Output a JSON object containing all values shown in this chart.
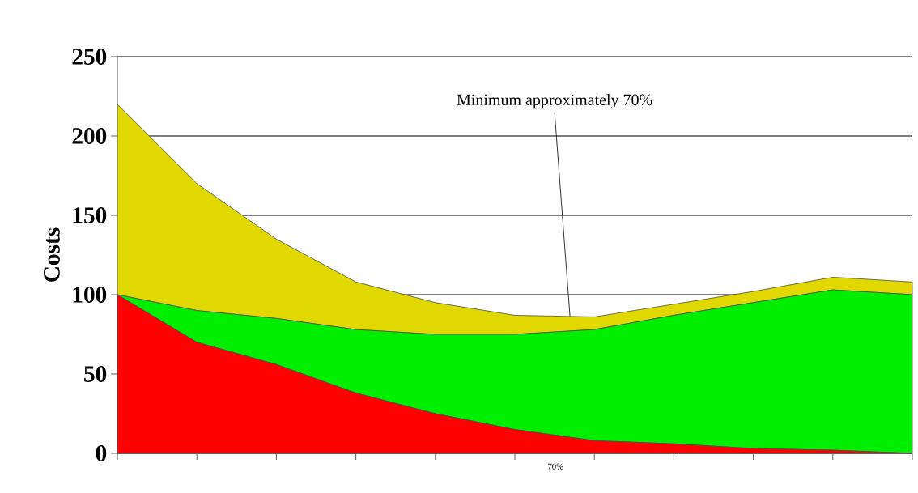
{
  "chart_data": {
    "type": "area",
    "stacked": true,
    "ylabel": "Costs",
    "categories": [
      null,
      null,
      null,
      null,
      null,
      null,
      "70%",
      null,
      null,
      null,
      null
    ],
    "series": [
      {
        "color": "#ff0000",
        "values": [
          100,
          70,
          56,
          38,
          25,
          15,
          8,
          6,
          3,
          2,
          0
        ]
      },
      {
        "color": "#00ee00",
        "values": [
          0,
          20,
          29,
          40,
          50,
          60,
          70,
          81,
          92,
          101,
          100
        ]
      },
      {
        "color": "#e0d800",
        "values": [
          120,
          80,
          50,
          30,
          20,
          12,
          8,
          7,
          7,
          8,
          8
        ]
      }
    ],
    "ylim": [
      0,
      250
    ],
    "yticks": [
      0,
      50,
      100,
      150,
      200,
      250
    ],
    "grid": "y",
    "annotations": [
      "Minimum approximately 70%"
    ]
  }
}
